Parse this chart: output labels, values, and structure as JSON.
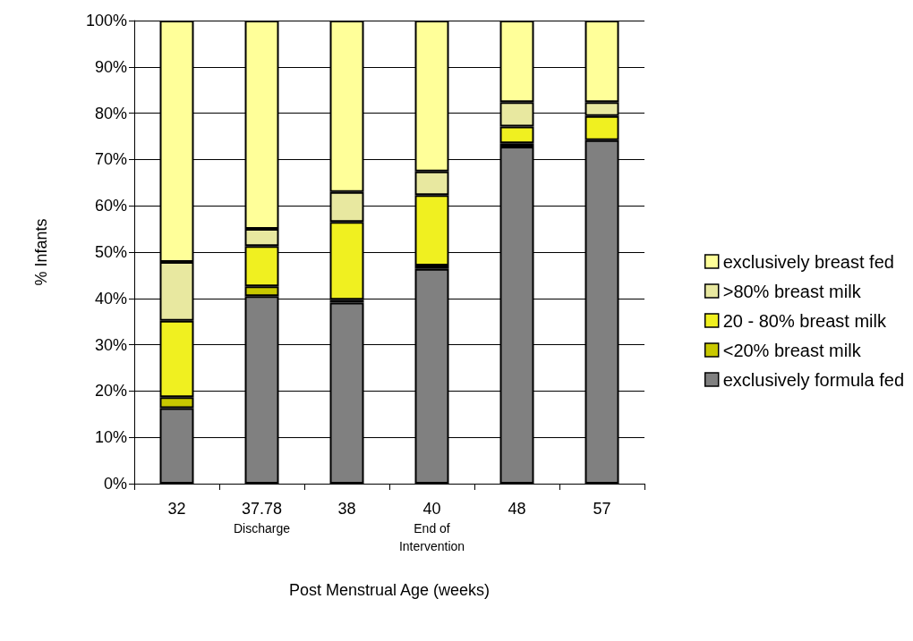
{
  "chart_data": {
    "type": "bar",
    "stacked": true,
    "xlabel": "Post Menstrual Age (weeks)",
    "ylabel": "% Infants",
    "categories": [
      "32",
      "37.78\nDischarge",
      "38",
      "40\nEnd of Intervention",
      "48",
      "57"
    ],
    "series": [
      {
        "name": "exclusively formula fed",
        "color": "#808080",
        "values": [
          16.3,
          40.5,
          39.1,
          46.4,
          72.8,
          74.2
        ]
      },
      {
        "name": "<20% breast milk",
        "color": "#c8c800",
        "values": [
          2.4,
          2.1,
          0.6,
          0.7,
          0.7,
          0
        ]
      },
      {
        "name": "20 - 80% breast milk",
        "color": "#f0f020",
        "values": [
          16.5,
          8.7,
          16.8,
          15.2,
          3.6,
          5.2
        ]
      },
      {
        "name": ">80% breast milk",
        "color": "#e8e8a0",
        "values": [
          12.7,
          3.7,
          6.5,
          5.1,
          5.3,
          3.0
        ]
      },
      {
        "name": "exclusively breast fed",
        "color": "#ffff99",
        "values": [
          52.1,
          45.0,
          37.0,
          32.6,
          17.6,
          17.6
        ]
      }
    ],
    "ylim": [
      0,
      100
    ],
    "yticks": [
      {
        "value": 0,
        "label": "0%"
      },
      {
        "value": 10,
        "label": "10%"
      },
      {
        "value": 20,
        "label": "20%"
      },
      {
        "value": 30,
        "label": "30%"
      },
      {
        "value": 40,
        "label": "40%"
      },
      {
        "value": 50,
        "label": "50%"
      },
      {
        "value": 60,
        "label": "60%"
      },
      {
        "value": 70,
        "label": "70%"
      },
      {
        "value": 80,
        "label": "80%"
      },
      {
        "value": 90,
        "label": "90%"
      },
      {
        "value": 100,
        "label": "100%"
      }
    ],
    "grid": "y",
    "legend": "right"
  }
}
